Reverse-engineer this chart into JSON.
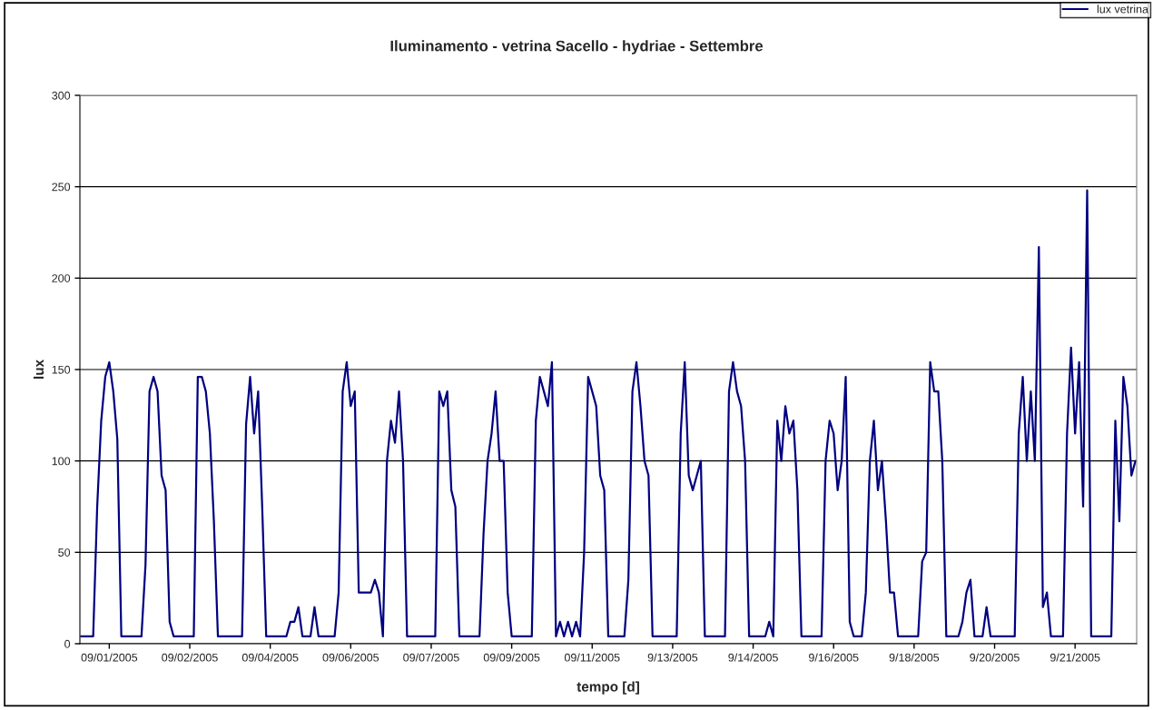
{
  "chart_data": {
    "type": "line",
    "title": "Iluminamento - vetrina Sacello - hydriae - Settembre",
    "xlabel": "tempo [d]",
    "ylabel": "lux",
    "categories": [
      null,
      null,
      null,
      null,
      null,
      null,
      null,
      "09/01/2005",
      null,
      null,
      null,
      null,
      null,
      null,
      null,
      null,
      null,
      null,
      null,
      null,
      null,
      null,
      null,
      null,
      null,
      null,
      null,
      "09/02/2005",
      null,
      null,
      null,
      null,
      null,
      null,
      null,
      null,
      null,
      null,
      null,
      null,
      null,
      null,
      null,
      null,
      null,
      null,
      null,
      "09/04/2005",
      null,
      null,
      null,
      null,
      null,
      null,
      null,
      null,
      null,
      null,
      null,
      null,
      null,
      null,
      null,
      null,
      null,
      null,
      null,
      "09/06/2005",
      null,
      null,
      null,
      null,
      null,
      null,
      null,
      null,
      null,
      null,
      null,
      null,
      null,
      null,
      null,
      null,
      null,
      null,
      null,
      "09/07/2005",
      null,
      null,
      null,
      null,
      null,
      null,
      null,
      null,
      null,
      null,
      null,
      null,
      null,
      null,
      null,
      null,
      null,
      null,
      null,
      "09/09/2005",
      null,
      null,
      null,
      null,
      null,
      null,
      null,
      null,
      null,
      null,
      null,
      null,
      null,
      null,
      null,
      null,
      null,
      null,
      null,
      "09/11/2005",
      null,
      null,
      null,
      null,
      null,
      null,
      null,
      null,
      null,
      null,
      null,
      null,
      null,
      null,
      null,
      null,
      null,
      null,
      null,
      "9/13/2005",
      null,
      null,
      null,
      null,
      null,
      null,
      null,
      null,
      null,
      null,
      null,
      null,
      null,
      null,
      null,
      null,
      null,
      null,
      null,
      "9/14/2005",
      null,
      null,
      null,
      null,
      null,
      null,
      null,
      null,
      null,
      null,
      null,
      null,
      null,
      null,
      null,
      null,
      null,
      null,
      null,
      "9/16/2005",
      null,
      null,
      null,
      null,
      null,
      null,
      null,
      null,
      null,
      null,
      null,
      null,
      null,
      null,
      null,
      null,
      null,
      null,
      null,
      "9/18/2005",
      null,
      null,
      null,
      null,
      null,
      null,
      null,
      null,
      null,
      null,
      null,
      null,
      null,
      null,
      null,
      null,
      null,
      null,
      null,
      "9/20/2005",
      null,
      null,
      null,
      null,
      null,
      null,
      null,
      null,
      null,
      null,
      null,
      null,
      null,
      null,
      null,
      null,
      null,
      null,
      null,
      "9/21/2005",
      null,
      null,
      null,
      null,
      null,
      null,
      null,
      null,
      null,
      null,
      null,
      null,
      null,
      null,
      null
    ],
    "ylim": [
      0,
      300
    ],
    "yticks": [
      0,
      50,
      100,
      150,
      200,
      250,
      300
    ],
    "grid": "y",
    "legend": "top right",
    "marker": "none",
    "line_style": "solid",
    "series": [
      {
        "name": "lux vetrina",
        "color": "#000080",
        "values": [
          4,
          4,
          4,
          4,
          75,
          122,
          146,
          154,
          138,
          112,
          4,
          4,
          4,
          4,
          4,
          4,
          43,
          138,
          146,
          138,
          92,
          84,
          12,
          4,
          4,
          4,
          4,
          4,
          4,
          146,
          146,
          138,
          115,
          67,
          4,
          4,
          4,
          4,
          4,
          4,
          4,
          120,
          146,
          115,
          138,
          75,
          4,
          4,
          4,
          4,
          4,
          4,
          12,
          12,
          20,
          4,
          4,
          4,
          20,
          4,
          4,
          4,
          4,
          4,
          28,
          138,
          154,
          130,
          138,
          28,
          28,
          28,
          28,
          35,
          28,
          4,
          100,
          122,
          110,
          138,
          100,
          4,
          4,
          4,
          4,
          4,
          4,
          4,
          4,
          138,
          130,
          138,
          84,
          75,
          4,
          4,
          4,
          4,
          4,
          4,
          60,
          100,
          115,
          138,
          100,
          100,
          28,
          4,
          4,
          4,
          4,
          4,
          4,
          122,
          146,
          138,
          130,
          154,
          4,
          12,
          4,
          12,
          4,
          12,
          4,
          50,
          146,
          138,
          130,
          92,
          84,
          4,
          4,
          4,
          4,
          4,
          35,
          138,
          154,
          130,
          100,
          92,
          4,
          4,
          4,
          4,
          4,
          4,
          4,
          115,
          154,
          92,
          84,
          92,
          100,
          4,
          4,
          4,
          4,
          4,
          4,
          138,
          154,
          138,
          130,
          100,
          4,
          4,
          4,
          4,
          4,
          12,
          4,
          122,
          100,
          130,
          115,
          122,
          84,
          4,
          4,
          4,
          4,
          4,
          4,
          100,
          122,
          115,
          84,
          100,
          146,
          12,
          4,
          4,
          4,
          28,
          100,
          122,
          84,
          100,
          67,
          28,
          28,
          4,
          4,
          4,
          4,
          4,
          4,
          45,
          50,
          154,
          138,
          138,
          100,
          4,
          4,
          4,
          4,
          12,
          28,
          35,
          4,
          4,
          4,
          20,
          4,
          4,
          4,
          4,
          4,
          4,
          4,
          115,
          146,
          100,
          138,
          100,
          217,
          20,
          28,
          4,
          4,
          4,
          4,
          115,
          162,
          115,
          154,
          75,
          248,
          4,
          4,
          4,
          4,
          4,
          4,
          122,
          67,
          146,
          130,
          92,
          100
        ]
      }
    ]
  }
}
